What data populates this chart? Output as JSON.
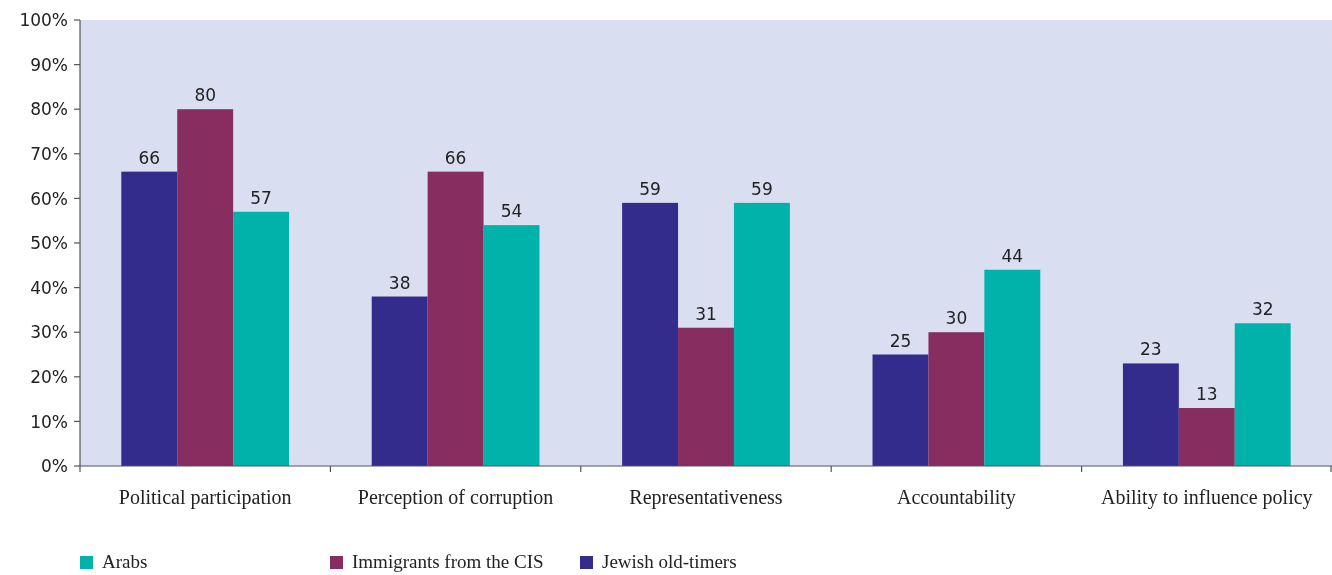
{
  "chart_data": {
    "type": "bar",
    "categories": [
      "Political participation",
      "Perception of corruption",
      "Representativeness",
      "Accountability",
      "Ability to influence policy"
    ],
    "series": [
      {
        "name": "Jewish old-timers",
        "color": "#332c8c",
        "values": [
          66,
          38,
          59,
          25,
          23
        ]
      },
      {
        "name": "Immigrants from the CIS",
        "color": "#882d60",
        "values": [
          80,
          66,
          31,
          30,
          13
        ]
      },
      {
        "name": "Arabs",
        "color": "#00b2a9",
        "values": [
          57,
          54,
          59,
          44,
          32
        ]
      }
    ],
    "ylim": [
      0,
      100
    ],
    "yticks": [
      {
        "value": 0,
        "label": "0%"
      },
      {
        "value": 10,
        "label": "10%"
      },
      {
        "value": 20,
        "label": "20%"
      },
      {
        "value": 30,
        "label": "30%"
      },
      {
        "value": 40,
        "label": "40%"
      },
      {
        "value": 50,
        "label": "50%"
      },
      {
        "value": 60,
        "label": "60%"
      },
      {
        "value": 70,
        "label": "70%"
      },
      {
        "value": 80,
        "label": "80%"
      },
      {
        "value": 90,
        "label": "90%"
      },
      {
        "value": 100,
        "label": "100%"
      }
    ],
    "grid": false,
    "data_labels": true,
    "legend": "bottom"
  }
}
